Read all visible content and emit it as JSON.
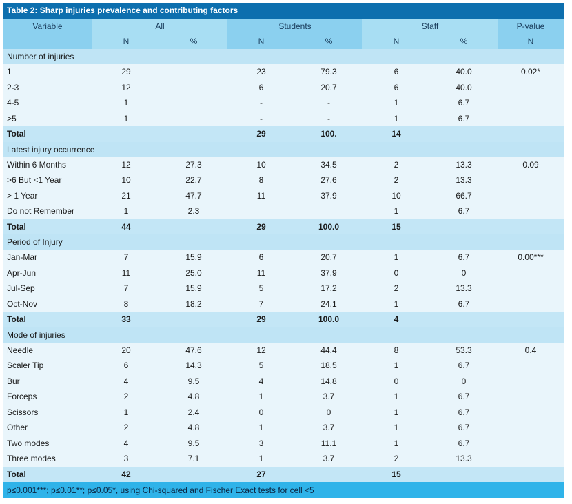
{
  "title": "Table 2: Sharp injuries prevalence and contributing factors",
  "header": {
    "variable": "Variable",
    "all": "All",
    "students": "Students",
    "staff": "Staff",
    "pvalue": "P-value",
    "sub": [
      "N",
      "%",
      "N",
      "%",
      "N",
      "%",
      "N"
    ]
  },
  "sections": [
    {
      "name": "Number of injuries",
      "rows": [
        {
          "label": "1",
          "all_n": "29",
          "all_p": "",
          "stu_n": "23",
          "stu_p": "79.3",
          "stf_n": "6",
          "stf_p": "40.0",
          "pval": "0.02*"
        },
        {
          "label": "2-3",
          "all_n": "12",
          "all_p": "",
          "stu_n": "6",
          "stu_p": "20.7",
          "stf_n": "6",
          "stf_p": "40.0",
          "pval": ""
        },
        {
          "label": "4-5",
          "all_n": "1",
          "all_p": "",
          "stu_n": "-",
          "stu_p": "-",
          "stf_n": "1",
          "stf_p": "6.7",
          "pval": ""
        },
        {
          "label": ">5",
          "all_n": "1",
          "all_p": "",
          "stu_n": "-",
          "stu_p": "-",
          "stf_n": "1",
          "stf_p": "6.7",
          "pval": ""
        }
      ],
      "total": {
        "label": "Total",
        "all_n": "",
        "all_p": "",
        "stu_n": "29",
        "stu_p": "100.",
        "stf_n": "14",
        "stf_p": "",
        "pval": ""
      }
    },
    {
      "name": "Latest injury occurrence",
      "rows": [
        {
          "label": "Within 6 Months",
          "all_n": "12",
          "all_p": "27.3",
          "stu_n": "10",
          "stu_p": "34.5",
          "stf_n": "2",
          "stf_p": "13.3",
          "pval": "0.09"
        },
        {
          "label": ">6 But <1 Year",
          "all_n": "10",
          "all_p": "22.7",
          "stu_n": "8",
          "stu_p": "27.6",
          "stf_n": "2",
          "stf_p": "13.3",
          "pval": ""
        },
        {
          "label": "> 1 Year",
          "all_n": "21",
          "all_p": "47.7",
          "stu_n": "11",
          "stu_p": "37.9",
          "stf_n": "10",
          "stf_p": "66.7",
          "pval": ""
        },
        {
          "label": "Do not Remember",
          "all_n": "1",
          "all_p": "2.3",
          "stu_n": "",
          "stu_p": "",
          "stf_n": "1",
          "stf_p": "6.7",
          "pval": ""
        }
      ],
      "total": {
        "label": "Total",
        "all_n": "44",
        "all_p": "",
        "stu_n": "29",
        "stu_p": "100.0",
        "stf_n": "15",
        "stf_p": "",
        "pval": ""
      }
    },
    {
      "name": "Period of Injury",
      "rows": [
        {
          "label": "Jan-Mar",
          "all_n": "7",
          "all_p": "15.9",
          "stu_n": "6",
          "stu_p": "20.7",
          "stf_n": "1",
          "stf_p": "6.7",
          "pval": "0.00***"
        },
        {
          "label": "Apr-Jun",
          "all_n": "11",
          "all_p": "25.0",
          "stu_n": "11",
          "stu_p": "37.9",
          "stf_n": "0",
          "stf_p": "0",
          "pval": ""
        },
        {
          "label": "Jul-Sep",
          "all_n": "7",
          "all_p": "15.9",
          "stu_n": "5",
          "stu_p": "17.2",
          "stf_n": "2",
          "stf_p": "13.3",
          "pval": ""
        },
        {
          "label": "Oct-Nov",
          "all_n": "8",
          "all_p": "18.2",
          "stu_n": "7",
          "stu_p": "24.1",
          "stf_n": "1",
          "stf_p": "6.7",
          "pval": ""
        }
      ],
      "total": {
        "label": "Total",
        "all_n": "33",
        "all_p": "",
        "stu_n": "29",
        "stu_p": "100.0",
        "stf_n": "4",
        "stf_p": "",
        "pval": ""
      }
    },
    {
      "name": "Mode of injuries",
      "rows": [
        {
          "label": "Needle",
          "all_n": "20",
          "all_p": "47.6",
          "stu_n": "12",
          "stu_p": "44.4",
          "stf_n": "8",
          "stf_p": "53.3",
          "pval": "0.4"
        },
        {
          "label": "Scaler Tip",
          "all_n": "6",
          "all_p": "14.3",
          "stu_n": "5",
          "stu_p": "18.5",
          "stf_n": "1",
          "stf_p": "6.7",
          "pval": ""
        },
        {
          "label": "Bur",
          "all_n": "4",
          "all_p": "9.5",
          "stu_n": "4",
          "stu_p": "14.8",
          "stf_n": "0",
          "stf_p": "0",
          "pval": ""
        },
        {
          "label": "Forceps",
          "all_n": "2",
          "all_p": "4.8",
          "stu_n": "1",
          "stu_p": "3.7",
          "stf_n": "1",
          "stf_p": "6.7",
          "pval": ""
        },
        {
          "label": "Scissors",
          "all_n": "1",
          "all_p": "2.4",
          "stu_n": "0",
          "stu_p": "0",
          "stf_n": "1",
          "stf_p": "6.7",
          "pval": ""
        },
        {
          "label": "Other",
          "all_n": "2",
          "all_p": "4.8",
          "stu_n": "1",
          "stu_p": "3.7",
          "stf_n": "1",
          "stf_p": "6.7",
          "pval": ""
        },
        {
          "label": "Two modes",
          "all_n": "4",
          "all_p": "9.5",
          "stu_n": "3",
          "stu_p": "11.1",
          "stf_n": "1",
          "stf_p": "6.7",
          "pval": ""
        },
        {
          "label": "Three modes",
          "all_n": "3",
          "all_p": "7.1",
          "stu_n": "1",
          "stu_p": "3.7",
          "stf_n": "2",
          "stf_p": "13.3",
          "pval": ""
        }
      ],
      "total": {
        "label": "Total",
        "all_n": "42",
        "all_p": "",
        "stu_n": "27",
        "stu_p": "",
        "stf_n": "15",
        "stf_p": "",
        "pval": ""
      }
    }
  ],
  "footnote": "p≤0.001***; p≤0.01**; p≤0.05*, using Chi-squared and Fischer Exact tests for cell <5"
}
